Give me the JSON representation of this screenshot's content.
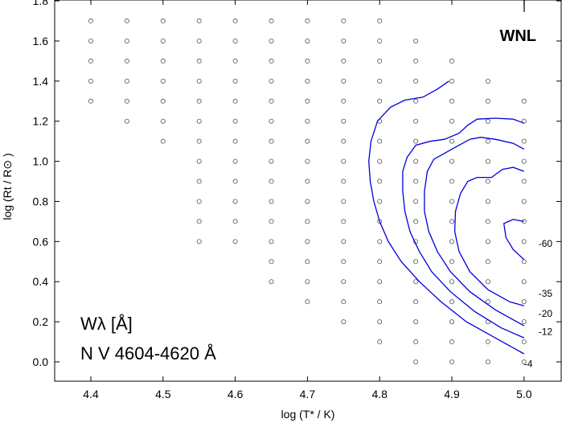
{
  "chart_data": {
    "type": "scatter",
    "title": "",
    "xlabel": "log (T* / K)",
    "ylabel": "log (Rt / R⊙ )",
    "xlim": [
      4.35,
      5.05
    ],
    "ylim": [
      -0.05,
      1.8
    ],
    "xticks": [
      4.4,
      4.5,
      4.6,
      4.7,
      4.8,
      4.9,
      5.0
    ],
    "xtick_labels": [
      "4.4",
      "4.5",
      "4.6",
      "4.7",
      "4.8",
      "4.9",
      "5.0"
    ],
    "yticks": [
      0.0,
      0.2,
      0.4,
      0.6,
      0.8,
      1.0,
      1.2,
      1.4,
      1.6,
      1.8
    ],
    "ytick_labels": [
      "0.0",
      "0.2",
      "0.4",
      "0.6",
      "0.8",
      "1.0",
      "1.2",
      "1.4",
      "1.6",
      "1.8"
    ],
    "grid": false,
    "corner_label": "WNL",
    "annotation_lines": [
      "Wλ [Å]",
      "N V 4604-4620 Å"
    ],
    "grid_models": {
      "marker": "open-circle",
      "columns": [
        {
          "x": 4.4,
          "y": [
            1.3,
            1.4,
            1.5,
            1.6,
            1.7
          ]
        },
        {
          "x": 4.45,
          "y": [
            1.2,
            1.3,
            1.4,
            1.5,
            1.6,
            1.7
          ]
        },
        {
          "x": 4.5,
          "y": [
            1.1,
            1.2,
            1.3,
            1.4,
            1.5,
            1.6,
            1.7
          ]
        },
        {
          "x": 4.55,
          "y": [
            0.6,
            0.7,
            0.8,
            0.9,
            1.0,
            1.1,
            1.2,
            1.3,
            1.4,
            1.5,
            1.6,
            1.7
          ]
        },
        {
          "x": 4.6,
          "y": [
            0.6,
            0.7,
            0.8,
            0.9,
            1.0,
            1.1,
            1.2,
            1.3,
            1.4,
            1.5,
            1.6,
            1.7
          ]
        },
        {
          "x": 4.65,
          "y": [
            0.4,
            0.5,
            0.6,
            0.7,
            0.8,
            0.9,
            1.0,
            1.1,
            1.2,
            1.3,
            1.4,
            1.5,
            1.6,
            1.7
          ]
        },
        {
          "x": 4.7,
          "y": [
            0.3,
            0.4,
            0.5,
            0.6,
            0.7,
            0.8,
            0.9,
            1.0,
            1.1,
            1.2,
            1.3,
            1.4,
            1.5,
            1.6,
            1.7
          ]
        },
        {
          "x": 4.75,
          "y": [
            0.2,
            0.3,
            0.4,
            0.5,
            0.6,
            0.7,
            0.8,
            0.9,
            1.0,
            1.1,
            1.2,
            1.3,
            1.4,
            1.5,
            1.6,
            1.7
          ]
        },
        {
          "x": 4.8,
          "y": [
            0.1,
            0.2,
            0.3,
            0.4,
            0.5,
            0.6,
            0.7,
            0.8,
            0.9,
            1.0,
            1.1,
            1.2,
            1.3,
            1.4,
            1.5,
            1.6,
            1.7
          ]
        },
        {
          "x": 4.85,
          "y": [
            0.0,
            0.1,
            0.2,
            0.3,
            0.4,
            0.5,
            0.6,
            0.7,
            0.8,
            0.9,
            1.0,
            1.1,
            1.2,
            1.3,
            1.4,
            1.5,
            1.6
          ]
        },
        {
          "x": 4.9,
          "y": [
            0.0,
            0.1,
            0.2,
            0.3,
            0.4,
            0.5,
            0.6,
            0.7,
            0.8,
            0.9,
            1.0,
            1.1,
            1.2,
            1.3,
            1.4,
            1.5
          ]
        },
        {
          "x": 4.95,
          "y": [
            0.0,
            0.1,
            0.2,
            0.3,
            0.4,
            0.5,
            0.6,
            0.7,
            0.8,
            0.9,
            1.0,
            1.1,
            1.2,
            1.3,
            1.4
          ]
        },
        {
          "x": 5.0,
          "y": [
            0.0,
            0.1,
            0.2,
            0.3,
            0.4,
            0.5,
            0.6,
            0.7,
            0.8,
            0.9,
            1.0,
            1.1,
            1.2,
            1.3
          ]
        }
      ]
    },
    "contours": [
      {
        "level": "-4",
        "color": "#0000dd",
        "points": [
          [
            4.896,
            1.4
          ],
          [
            4.88,
            1.36
          ],
          [
            4.86,
            1.32
          ],
          [
            4.835,
            1.305
          ],
          [
            4.815,
            1.27
          ],
          [
            4.797,
            1.2
          ],
          [
            4.788,
            1.1
          ],
          [
            4.785,
            1.0
          ],
          [
            4.787,
            0.9
          ],
          [
            4.792,
            0.8
          ],
          [
            4.8,
            0.7
          ],
          [
            4.812,
            0.6
          ],
          [
            4.83,
            0.5
          ],
          [
            4.855,
            0.4
          ],
          [
            4.885,
            0.3
          ],
          [
            4.92,
            0.2
          ],
          [
            4.96,
            0.12
          ],
          [
            5.0,
            0.04
          ]
        ],
        "label_at": [
          5.0,
          -0.01
        ]
      },
      {
        "level": "-12",
        "color": "#0000dd",
        "points": [
          [
            5.0,
            1.19
          ],
          [
            4.985,
            1.21
          ],
          [
            4.96,
            1.215
          ],
          [
            4.935,
            1.21
          ],
          [
            4.922,
            1.18
          ],
          [
            4.91,
            1.14
          ],
          [
            4.89,
            1.11
          ],
          [
            4.87,
            1.1
          ],
          [
            4.85,
            1.08
          ],
          [
            4.838,
            1.02
          ],
          [
            4.832,
            0.95
          ],
          [
            4.832,
            0.85
          ],
          [
            4.835,
            0.75
          ],
          [
            4.842,
            0.65
          ],
          [
            4.855,
            0.55
          ],
          [
            4.872,
            0.45
          ],
          [
            4.898,
            0.35
          ],
          [
            4.932,
            0.25
          ],
          [
            4.968,
            0.17
          ],
          [
            5.0,
            0.12
          ]
        ],
        "label_at": [
          5.02,
          0.15
        ]
      },
      {
        "level": "-20",
        "color": "#0000dd",
        "points": [
          [
            5.0,
            1.06
          ],
          [
            4.985,
            1.09
          ],
          [
            4.96,
            1.11
          ],
          [
            4.94,
            1.12
          ],
          [
            4.925,
            1.11
          ],
          [
            4.91,
            1.08
          ],
          [
            4.895,
            1.05
          ],
          [
            4.875,
            1.01
          ],
          [
            4.866,
            0.95
          ],
          [
            4.862,
            0.85
          ],
          [
            4.862,
            0.75
          ],
          [
            4.868,
            0.65
          ],
          [
            4.88,
            0.55
          ],
          [
            4.898,
            0.45
          ],
          [
            4.925,
            0.35
          ],
          [
            4.96,
            0.26
          ],
          [
            5.0,
            0.18
          ]
        ],
        "label_at": [
          5.02,
          0.24
        ]
      },
      {
        "level": "-35",
        "color": "#0000dd",
        "points": [
          [
            5.0,
            0.95
          ],
          [
            4.985,
            0.97
          ],
          [
            4.97,
            0.96
          ],
          [
            4.955,
            0.92
          ],
          [
            4.935,
            0.92
          ],
          [
            4.922,
            0.9
          ],
          [
            4.912,
            0.84
          ],
          [
            4.905,
            0.75
          ],
          [
            4.904,
            0.65
          ],
          [
            4.91,
            0.55
          ],
          [
            4.925,
            0.45
          ],
          [
            4.95,
            0.36
          ],
          [
            4.98,
            0.3
          ],
          [
            5.0,
            0.28
          ]
        ],
        "label_at": [
          5.02,
          0.34
        ]
      },
      {
        "level": "-60",
        "color": "#0000dd",
        "points": [
          [
            5.0,
            0.7
          ],
          [
            4.985,
            0.71
          ],
          [
            4.972,
            0.69
          ],
          [
            4.975,
            0.62
          ],
          [
            4.985,
            0.56
          ],
          [
            5.0,
            0.51
          ]
        ],
        "label_at": [
          5.02,
          0.59
        ]
      }
    ]
  }
}
